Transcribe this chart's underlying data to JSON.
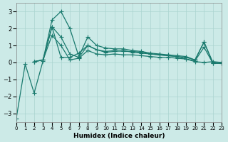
{
  "xlabel": "Humidex (Indice chaleur)",
  "bg_color": "#cceae7",
  "grid_color": "#aad4d0",
  "line_color": "#1a7a6e",
  "xlim": [
    0,
    23
  ],
  "ylim": [
    -3.5,
    3.5
  ],
  "yticks": [
    -3,
    -2,
    -1,
    0,
    1,
    2,
    3
  ],
  "xticks": [
    0,
    1,
    2,
    3,
    4,
    5,
    6,
    7,
    8,
    9,
    10,
    11,
    12,
    13,
    14,
    15,
    16,
    17,
    18,
    19,
    20,
    21,
    22,
    23
  ],
  "series1_x": [
    0,
    1,
    2,
    3,
    4,
    5,
    6,
    7,
    8,
    9,
    10,
    11,
    12,
    13,
    14,
    15,
    16,
    17,
    18,
    19,
    20,
    21,
    22,
    23
  ],
  "series1_y": [
    -3.3,
    -0.1,
    -1.8,
    0.1,
    2.1,
    0.3,
    0.3,
    0.55,
    1.0,
    0.75,
    0.6,
    0.65,
    0.7,
    0.6,
    0.55,
    0.5,
    0.45,
    0.4,
    0.35,
    0.2,
    0.05,
    0.0,
    0.05,
    0.0
  ],
  "series2_x": [
    2,
    3,
    4,
    5,
    6,
    7,
    8,
    9,
    10,
    11,
    12,
    13,
    14,
    15,
    16,
    17,
    18,
    19,
    20,
    21,
    22,
    23
  ],
  "series2_y": [
    0.05,
    0.15,
    2.1,
    1.5,
    0.5,
    0.3,
    1.0,
    0.75,
    0.65,
    0.7,
    0.65,
    0.65,
    0.6,
    0.5,
    0.45,
    0.4,
    0.35,
    0.3,
    0.15,
    1.2,
    0.0,
    0.0
  ],
  "series3_x": [
    2,
    3,
    4,
    5,
    6,
    7,
    8,
    9,
    10,
    11,
    12,
    13,
    14,
    15,
    16,
    17,
    18,
    19,
    20,
    21,
    22,
    23
  ],
  "series3_y": [
    0.05,
    0.15,
    2.5,
    3.0,
    2.0,
    0.35,
    1.5,
    1.0,
    0.85,
    0.8,
    0.8,
    0.7,
    0.65,
    0.55,
    0.5,
    0.45,
    0.4,
    0.35,
    0.15,
    1.2,
    -0.05,
    -0.05
  ],
  "series4_x": [
    2,
    3,
    4,
    5,
    6,
    7,
    8,
    9,
    10,
    11,
    12,
    13,
    14,
    15,
    16,
    17,
    18,
    19,
    20,
    21,
    22,
    23
  ],
  "series4_y": [
    0.05,
    0.15,
    1.6,
    1.0,
    0.15,
    0.25,
    0.7,
    0.5,
    0.45,
    0.5,
    0.45,
    0.45,
    0.4,
    0.35,
    0.3,
    0.3,
    0.25,
    0.2,
    0.1,
    0.9,
    -0.05,
    -0.05
  ],
  "markersize": 4,
  "linewidth": 0.9
}
